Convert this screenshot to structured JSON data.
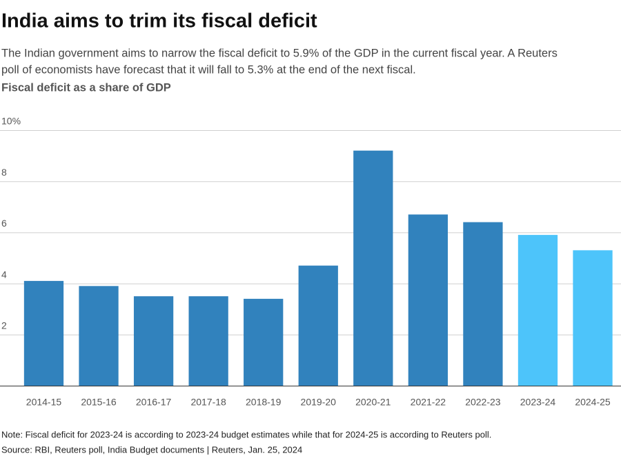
{
  "chart_data": {
    "type": "bar",
    "title": "India aims to trim its fiscal deficit",
    "subtitle": [
      "The Indian government aims to narrow the fiscal deficit to 5.9% of the GDP in the current fiscal year. A Reuters",
      "poll of economists have forecast that it will fall to 5.3% at the end of the next fiscal."
    ],
    "y_label": "Fiscal deficit as a share of GDP",
    "categories": [
      "2014-15",
      "2015-16",
      "2016-17",
      "2017-18",
      "2018-19",
      "2019-20",
      "2020-21",
      "2021-22",
      "2022-23",
      "2023-24",
      "2024-25"
    ],
    "values": [
      4.1,
      3.9,
      3.5,
      3.5,
      3.4,
      4.7,
      9.2,
      6.7,
      6.4,
      5.9,
      5.3
    ],
    "colors": [
      "#3182bd",
      "#3182bd",
      "#3182bd",
      "#3182bd",
      "#3182bd",
      "#3182bd",
      "#3182bd",
      "#3182bd",
      "#3182bd",
      "#4dc4fa",
      "#4dc4fa"
    ],
    "ylim": [
      0,
      10
    ],
    "yticks": [
      2,
      4,
      6,
      8,
      {
        "value": 10,
        "label": "10%"
      }
    ],
    "grid": true,
    "note": "Note: Fiscal deficit for 2023-24 is according to 2023-24 budget estimates while that for 2024-25 is according to Reuters poll.",
    "source": "Source: RBI, Reuters poll, India Budget documents | Reuters, Jan. 25, 2024"
  }
}
